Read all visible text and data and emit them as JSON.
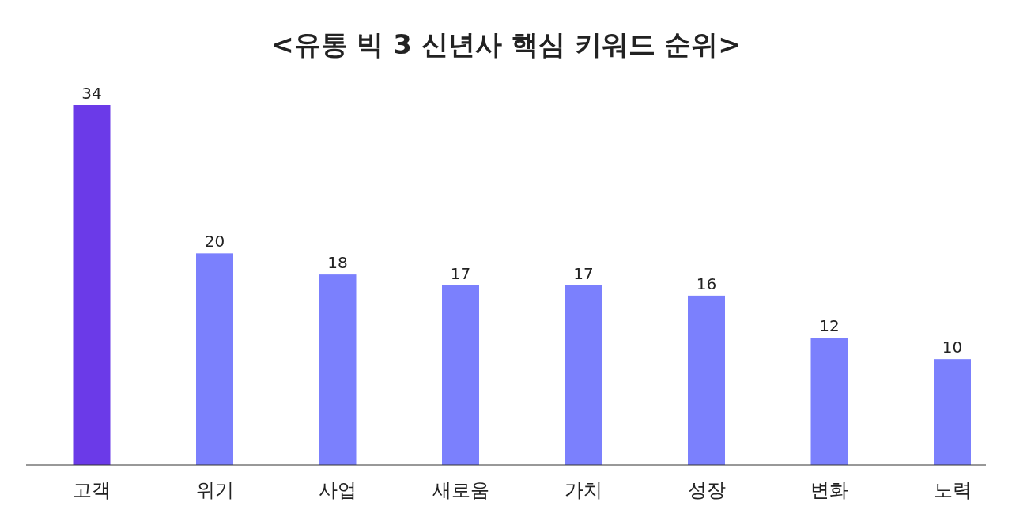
{
  "chart_data": {
    "type": "bar",
    "title": "<유통 빅 3 신년사 핵심 키워드 순위>",
    "categories": [
      "고객",
      "위기",
      "사업",
      "새로움",
      "가치",
      "성장",
      "변화",
      "노력"
    ],
    "values": [
      34,
      20,
      18,
      17,
      17,
      16,
      12,
      10
    ],
    "colors": [
      "#6b3ae8",
      "#7b80fd",
      "#7b80fd",
      "#7b80fd",
      "#7b80fd",
      "#7b80fd",
      "#7b80fd",
      "#7b80fd"
    ],
    "data_labels": true
  }
}
